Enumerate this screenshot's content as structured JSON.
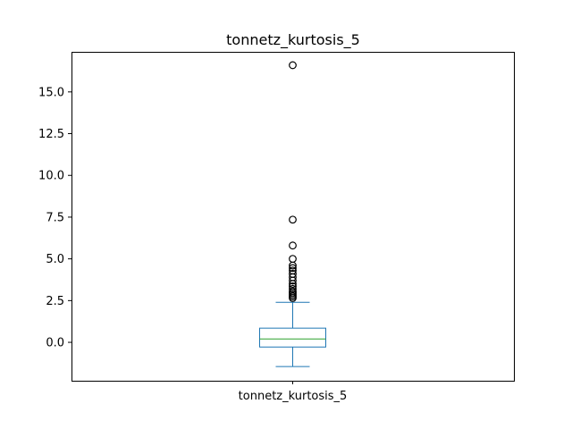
{
  "chart_data": {
    "type": "box",
    "title": "tonnetz_kurtosis_5",
    "categories": [
      "tonnetz_kurtosis_5"
    ],
    "ylim": [
      -2.3,
      17.4
    ],
    "yticks": [
      0.0,
      2.5,
      5.0,
      7.5,
      10.0,
      12.5,
      15.0
    ],
    "ytick_labels": [
      "0.0",
      "2.5",
      "5.0",
      "7.5",
      "10.0",
      "12.5",
      "15.0"
    ],
    "boxes": [
      {
        "category": "tonnetz_kurtosis_5",
        "whisker_low": -1.45,
        "q1": -0.28,
        "median": 0.2,
        "q3": 0.85,
        "whisker_high": 2.4,
        "outliers": [
          16.6,
          7.35,
          5.8,
          5.0,
          4.6,
          4.45,
          4.3,
          4.1,
          3.9,
          3.7,
          3.5,
          3.35,
          3.2,
          3.05,
          2.95,
          2.85,
          2.75,
          2.65
        ]
      }
    ],
    "grid": false,
    "colors": {
      "box": "#1f77b4",
      "median": "#2ca02c",
      "outlier_edge": "#000000",
      "axes": "#000000"
    }
  }
}
